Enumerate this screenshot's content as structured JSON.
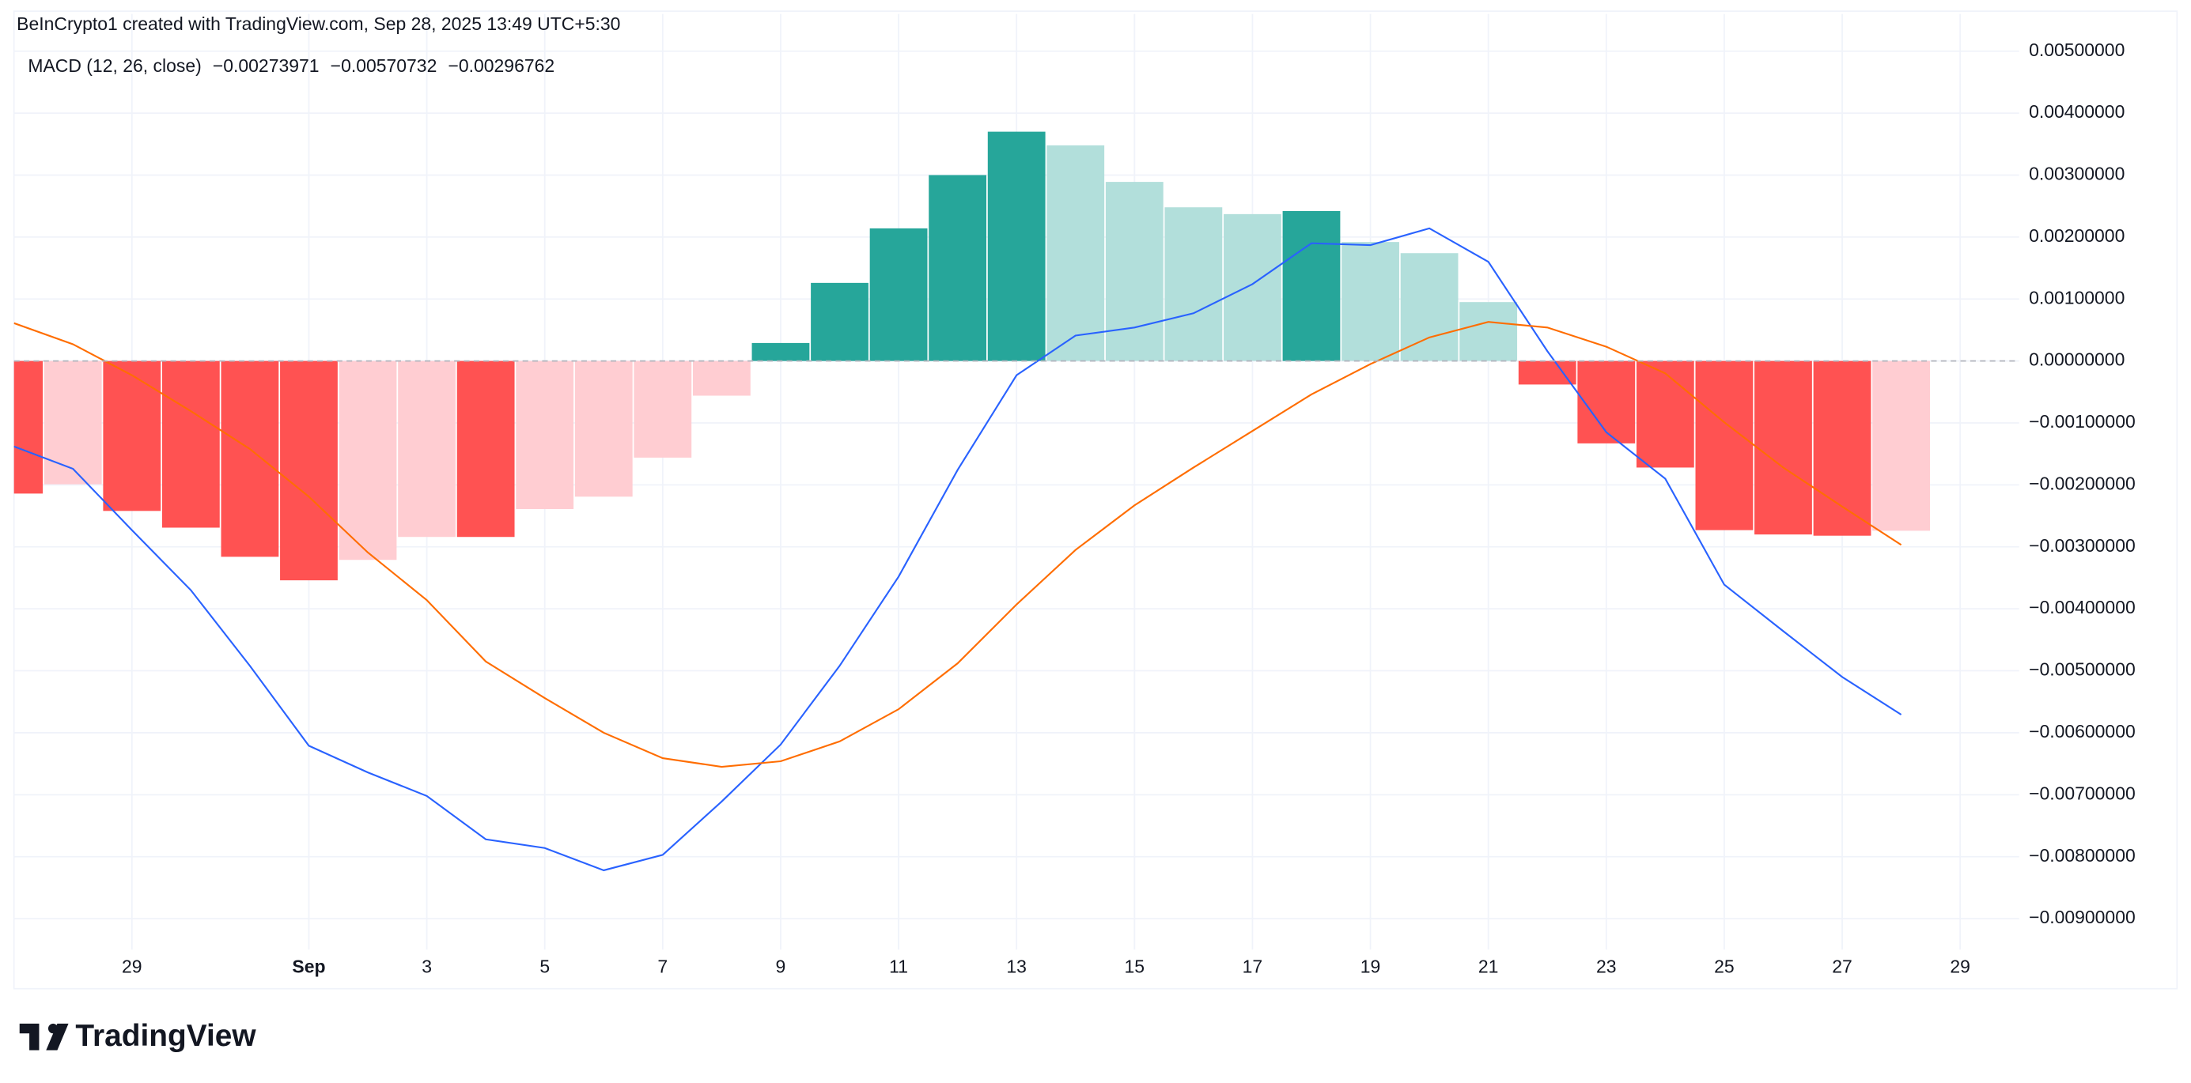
{
  "header": "BeInCrypto1 created with TradingView.com, Sep 28, 2025 13:49 UTC+5:30",
  "footer_logo": "TradingView",
  "chart_data": {
    "type": "bar",
    "legend_title": "MACD (12, 26, close)",
    "x": [
      "2025-08-27",
      "2025-08-28",
      "2025-08-29",
      "2025-08-30",
      "2025-08-31",
      "2025-09-01",
      "2025-09-02",
      "2025-09-03",
      "2025-09-04",
      "2025-09-05",
      "2025-09-06",
      "2025-09-07",
      "2025-09-08",
      "2025-09-09",
      "2025-09-10",
      "2025-09-11",
      "2025-09-12",
      "2025-09-13",
      "2025-09-14",
      "2025-09-15",
      "2025-09-16",
      "2025-09-17",
      "2025-09-18",
      "2025-09-19",
      "2025-09-20",
      "2025-09-21",
      "2025-09-22",
      "2025-09-23",
      "2025-09-24",
      "2025-09-25",
      "2025-09-26",
      "2025-09-27",
      "2025-09-28"
    ],
    "xlim": [
      "2025-08-27",
      "2025-09-30"
    ],
    "xticks": [
      {
        "value": "2025-08-29",
        "label": "29"
      },
      {
        "value": "2025-09-01",
        "label": "Sep"
      },
      {
        "value": "2025-09-03",
        "label": "3"
      },
      {
        "value": "2025-09-05",
        "label": "5"
      },
      {
        "value": "2025-09-07",
        "label": "7"
      },
      {
        "value": "2025-09-09",
        "label": "9"
      },
      {
        "value": "2025-09-11",
        "label": "11"
      },
      {
        "value": "2025-09-13",
        "label": "13"
      },
      {
        "value": "2025-09-15",
        "label": "15"
      },
      {
        "value": "2025-09-17",
        "label": "17"
      },
      {
        "value": "2025-09-19",
        "label": "19"
      },
      {
        "value": "2025-09-21",
        "label": "21"
      },
      {
        "value": "2025-09-23",
        "label": "23"
      },
      {
        "value": "2025-09-25",
        "label": "25"
      },
      {
        "value": "2025-09-27",
        "label": "27"
      },
      {
        "value": "2025-09-29",
        "label": "29"
      }
    ],
    "ylim": [
      -0.0095,
      0.0056
    ],
    "yticks": [
      {
        "value": 0.005,
        "label": "0.00500000"
      },
      {
        "value": 0.004,
        "label": "0.00400000"
      },
      {
        "value": 0.003,
        "label": "0.00300000"
      },
      {
        "value": 0.002,
        "label": "0.00200000"
      },
      {
        "value": 0.001,
        "label": "0.00100000"
      },
      {
        "value": 0,
        "label": "0.00000000"
      },
      {
        "value": -0.001,
        "label": "−0.00100000"
      },
      {
        "value": -0.002,
        "label": "−0.00200000"
      },
      {
        "value": -0.003,
        "label": "−0.00300000"
      },
      {
        "value": -0.004,
        "label": "−0.00400000"
      },
      {
        "value": -0.005,
        "label": "−0.00500000"
      },
      {
        "value": -0.006,
        "label": "−0.00600000"
      },
      {
        "value": -0.007,
        "label": "−0.00700000"
      },
      {
        "value": -0.008,
        "label": "−0.00800000"
      },
      {
        "value": -0.009,
        "label": "−0.00900000"
      }
    ],
    "grid": true,
    "zero_line_color": "#b2b5be",
    "series": [
      {
        "type": "bar",
        "legend_value": "−0.00273971",
        "color": "#ffcdd2",
        "values": [
          -0.00214,
          -0.00199,
          -0.00242,
          -0.00269,
          -0.00316,
          -0.00354,
          -0.00321,
          -0.00284,
          -0.00284,
          -0.00239,
          -0.00219,
          -0.00156,
          -0.00056,
          0.00029,
          0.00126,
          0.00214,
          0.003,
          0.0037,
          0.00348,
          0.00289,
          0.00248,
          0.00237,
          0.00242,
          0.00192,
          0.00174,
          0.00095,
          -0.00038,
          -0.00133,
          -0.00172,
          -0.00273,
          -0.0028,
          -0.00282,
          -0.00273971
        ],
        "colors": [
          "#ff5252",
          "#ffcdd2",
          "#ff5252",
          "#ff5252",
          "#ff5252",
          "#ff5252",
          "#ffcdd2",
          "#ffcdd2",
          "#ff5252",
          "#ffcdd2",
          "#ffcdd2",
          "#ffcdd2",
          "#ffcdd2",
          "#26a69a",
          "#26a69a",
          "#26a69a",
          "#26a69a",
          "#26a69a",
          "#b2dfdb",
          "#b2dfdb",
          "#b2dfdb",
          "#b2dfdb",
          "#26a69a",
          "#b2dfdb",
          "#b2dfdb",
          "#b2dfdb",
          "#ff5252",
          "#ff5252",
          "#ff5252",
          "#ff5252",
          "#ff5252",
          "#ff5252",
          "#ffcdd2"
        ]
      },
      {
        "type": "line",
        "legend_value": "−0.00570732",
        "color": "#2962ff",
        "values": [
          -0.00138,
          -0.00174,
          -0.00273,
          -0.0037,
          -0.00492,
          -0.00621,
          -0.00664,
          -0.00702,
          -0.00772,
          -0.00786,
          -0.00822,
          -0.00797,
          -0.00711,
          -0.00619,
          -0.00492,
          -0.00348,
          -0.00176,
          -0.00023,
          0.00041,
          0.00054,
          0.00077,
          0.00124,
          0.0019,
          0.00187,
          0.00214,
          0.0016,
          0.00016,
          -0.00115,
          -0.0019,
          -0.00361,
          -0.00436,
          -0.0051,
          -0.00570732
        ]
      },
      {
        "type": "line",
        "legend_value": "−0.00296762",
        "color": "#ff6d00",
        "values": [
          0.00061,
          0.00027,
          -0.00023,
          -0.00081,
          -0.00142,
          -0.00219,
          -0.00309,
          -0.00386,
          -0.00485,
          -0.00544,
          -0.006,
          -0.00641,
          -0.00655,
          -0.00646,
          -0.00614,
          -0.00562,
          -0.00488,
          -0.00393,
          -0.00305,
          -0.00233,
          -0.00172,
          -0.00113,
          -0.00054,
          -5e-05,
          0.00038,
          0.00063,
          0.00054,
          0.00023,
          -0.0002,
          -0.00099,
          -0.00172,
          -0.00235,
          -0.00296762
        ]
      }
    ]
  }
}
